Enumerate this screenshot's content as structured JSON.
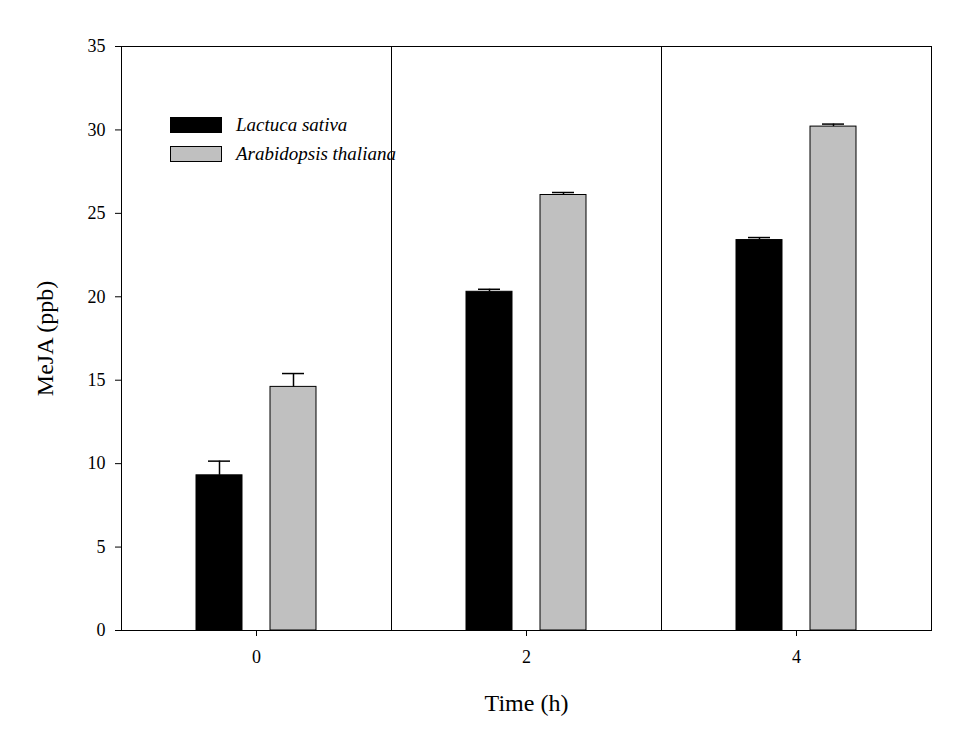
{
  "chart_data": {
    "type": "bar",
    "x_label": "Time (h)",
    "y_label": "MeJA (ppb)",
    "categories": [
      "0",
      "2",
      "4"
    ],
    "series": [
      {
        "name": "Lactuca sativa",
        "color": "#000000",
        "values": [
          9.3,
          20.3,
          23.4
        ],
        "errors": [
          0.85,
          0.15,
          0.15
        ]
      },
      {
        "name": "Arabidopsis thaliana",
        "color": "#c0c0c0",
        "values": [
          14.6,
          26.1,
          30.2
        ],
        "errors": [
          0.8,
          0.15,
          0.15
        ]
      }
    ],
    "ylim": [
      0,
      35
    ],
    "yticks": [
      0,
      5,
      10,
      15,
      20,
      25,
      30,
      35
    ],
    "grid": false,
    "legend": "upper left"
  }
}
